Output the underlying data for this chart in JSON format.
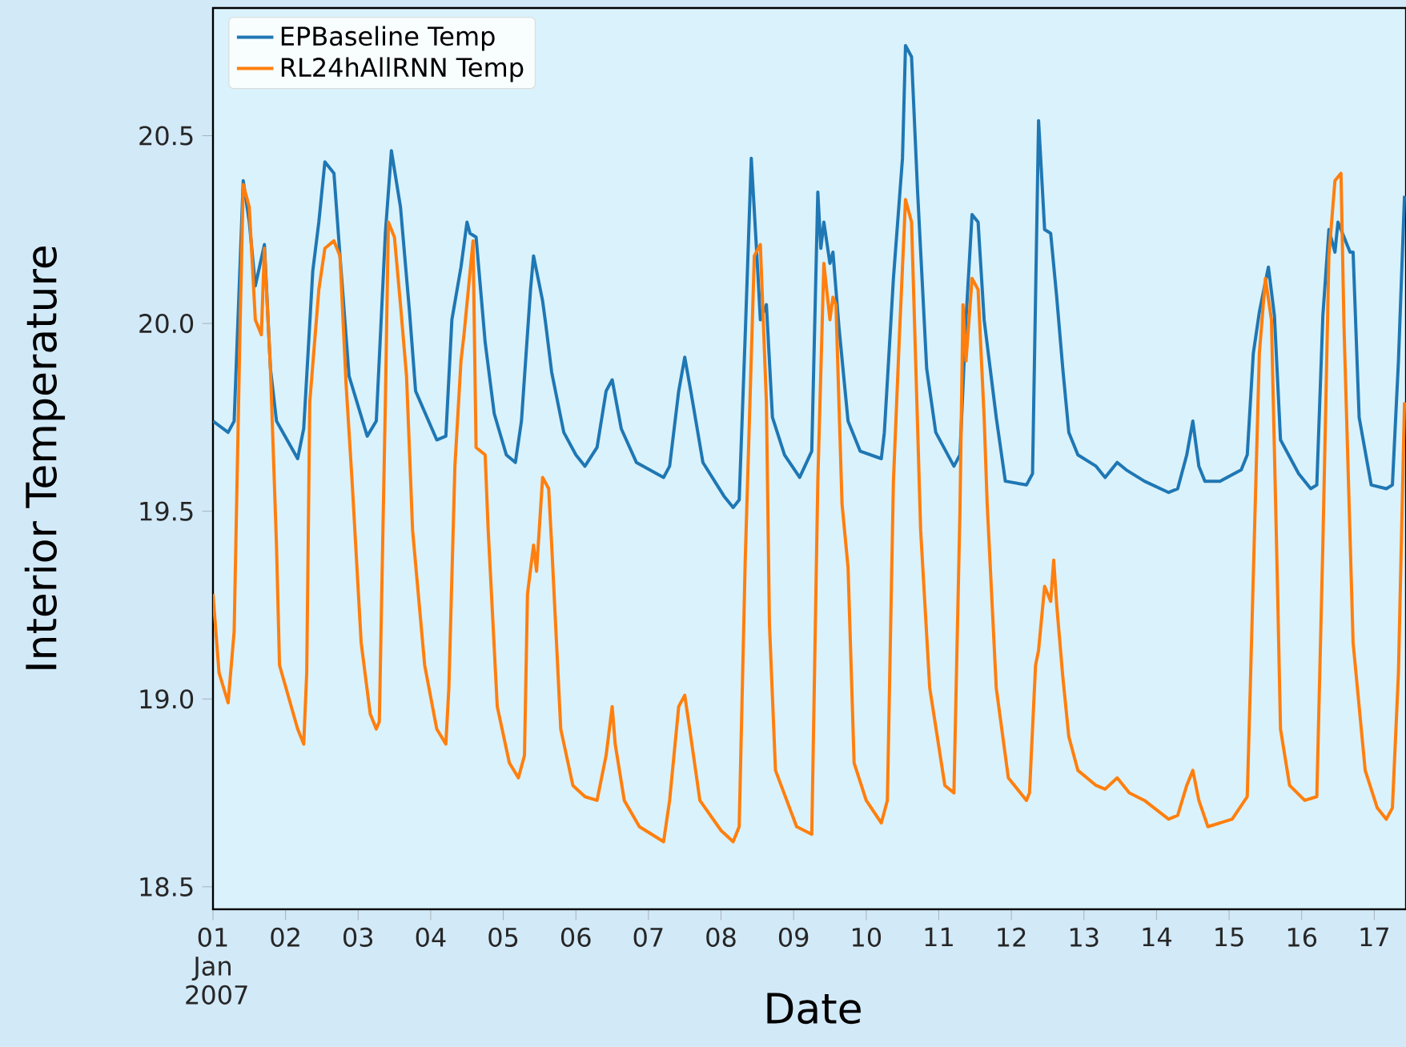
{
  "chart_data": {
    "type": "line",
    "xlabel": "Date",
    "ylabel": "Interior Temperature",
    "legend": "top left",
    "xlim": [
      "2007-01-01T00:00",
      "2007-01-17T10:30"
    ],
    "ylim": [
      18.44,
      20.84
    ],
    "yticks": [
      18.5,
      {
        "value": 19,
        "label": "19.0"
      },
      19.5,
      {
        "value": 20,
        "label": "20.0"
      },
      20.5
    ],
    "xticks": [
      {
        "value": "2007-01-01",
        "label": "01 Jan 2007"
      },
      {
        "value": "2007-01-02",
        "label": "02"
      },
      {
        "value": "2007-01-03",
        "label": "03"
      },
      {
        "value": "2007-01-04",
        "label": "04"
      },
      {
        "value": "2007-01-05",
        "label": "05"
      },
      {
        "value": "2007-01-06",
        "label": "06"
      },
      {
        "value": "2007-01-07",
        "label": "07"
      },
      {
        "value": "2007-01-08",
        "label": "08"
      },
      {
        "value": "2007-01-09",
        "label": "09"
      },
      {
        "value": "2007-01-10",
        "label": "10"
      },
      {
        "value": "2007-01-11",
        "label": "11"
      },
      {
        "value": "2007-01-12",
        "label": "12"
      },
      {
        "value": "2007-01-13",
        "label": "13"
      },
      {
        "value": "2007-01-14",
        "label": "14"
      },
      {
        "value": "2007-01-15",
        "label": "15"
      },
      {
        "value": "2007-01-16",
        "label": "16"
      },
      {
        "value": "2007-01-17",
        "label": "17"
      }
    ],
    "series": [
      {
        "name": "EPBaseline Temp",
        "color": "#1f77b4",
        "x": [
          "2007-01-01T00:00",
          "2007-01-01T05:00",
          "2007-01-01T07:00",
          "2007-01-01T10:00",
          "2007-01-01T12:00",
          "2007-01-01T14:00",
          "2007-01-01T17:00",
          "2007-01-01T19:00",
          "2007-01-01T21:00",
          "2007-01-02T04:00",
          "2007-01-02T06:00",
          "2007-01-02T09:00",
          "2007-01-02T11:00",
          "2007-01-02T13:00",
          "2007-01-02T16:00",
          "2007-01-02T18:00",
          "2007-01-02T21:00",
          "2007-01-03T03:00",
          "2007-01-03T06:00",
          "2007-01-03T09:00",
          "2007-01-03T11:00",
          "2007-01-03T14:00",
          "2007-01-03T17:00",
          "2007-01-03T19:00",
          "2007-01-04T02:00",
          "2007-01-04T05:00",
          "2007-01-04T07:00",
          "2007-01-04T10:00",
          "2007-01-04T12:00",
          "2007-01-04T13:00",
          "2007-01-04T15:00",
          "2007-01-04T18:00",
          "2007-01-04T21:00",
          "2007-01-05T01:00",
          "2007-01-05T04:00",
          "2007-01-05T06:00",
          "2007-01-05T09:00",
          "2007-01-05T10:00",
          "2007-01-05T13:00",
          "2007-01-05T14:00",
          "2007-01-05T16:00",
          "2007-01-05T20:00",
          "2007-01-06T00:00",
          "2007-01-06T03:00",
          "2007-01-06T07:00",
          "2007-01-06T10:00",
          "2007-01-06T12:00",
          "2007-01-06T15:00",
          "2007-01-06T20:00",
          "2007-01-07T05:00",
          "2007-01-07T07:00",
          "2007-01-07T10:00",
          "2007-01-07T12:00",
          "2007-01-07T14:00",
          "2007-01-07T18:00",
          "2007-01-08T01:00",
          "2007-01-08T04:00",
          "2007-01-08T06:00",
          "2007-01-08T08:00",
          "2007-01-08T10:00",
          "2007-01-08T12:00",
          "2007-01-08T13:00",
          "2007-01-08T15:00",
          "2007-01-08T17:00",
          "2007-01-08T21:00",
          "2007-01-09T02:00",
          "2007-01-09T06:00",
          "2007-01-09T08:00",
          "2007-01-09T09:00",
          "2007-01-09T10:00",
          "2007-01-09T12:00",
          "2007-01-09T13:00",
          "2007-01-09T15:00",
          "2007-01-09T18:00",
          "2007-01-09T22:00",
          "2007-01-10T05:00",
          "2007-01-10T06:00",
          "2007-01-10T09:00",
          "2007-01-10T12:00",
          "2007-01-10T13:00",
          "2007-01-10T15:00",
          "2007-01-10T17:00",
          "2007-01-10T20:00",
          "2007-01-10T23:00",
          "2007-01-11T05:00",
          "2007-01-11T07:00",
          "2007-01-11T09:00",
          "2007-01-11T11:00",
          "2007-01-11T13:00",
          "2007-01-11T15:00",
          "2007-01-11T17:00",
          "2007-01-11T19:00",
          "2007-01-11T22:00",
          "2007-01-12T05:00",
          "2007-01-12T07:00",
          "2007-01-12T09:00",
          "2007-01-12T11:00",
          "2007-01-12T13:00",
          "2007-01-12T15:00",
          "2007-01-12T17:00",
          "2007-01-12T19:00",
          "2007-01-12T22:00",
          "2007-01-13T04:00",
          "2007-01-13T07:00",
          "2007-01-13T11:00",
          "2007-01-13T14:00",
          "2007-01-13T20:00",
          "2007-01-14T04:00",
          "2007-01-14T07:00",
          "2007-01-14T10:00",
          "2007-01-14T12:00",
          "2007-01-14T14:00",
          "2007-01-14T16:00",
          "2007-01-14T21:00",
          "2007-01-15T04:00",
          "2007-01-15T06:00",
          "2007-01-15T08:00",
          "2007-01-15T10:00",
          "2007-01-15T13:00",
          "2007-01-15T15:00",
          "2007-01-15T17:00",
          "2007-01-15T23:00",
          "2007-01-16T03:00",
          "2007-01-16T05:00",
          "2007-01-16T07:00",
          "2007-01-16T09:00",
          "2007-01-16T11:00",
          "2007-01-16T12:00",
          "2007-01-16T16:00",
          "2007-01-16T17:00",
          "2007-01-16T19:00",
          "2007-01-16T23:00",
          "2007-01-17T04:00",
          "2007-01-17T06:00",
          "2007-01-17T08:00",
          "2007-01-17T10:00"
        ],
        "values": [
          19.74,
          19.71,
          19.74,
          20.38,
          20.27,
          20.1,
          20.21,
          19.88,
          19.74,
          19.64,
          19.72,
          20.14,
          20.27,
          20.43,
          20.4,
          20.18,
          19.86,
          19.7,
          19.74,
          20.24,
          20.46,
          20.31,
          20.03,
          19.82,
          19.69,
          19.7,
          20.01,
          20.15,
          20.27,
          20.24,
          20.23,
          19.95,
          19.76,
          19.65,
          19.63,
          19.74,
          20.09,
          20.18,
          20.06,
          20.0,
          19.87,
          19.71,
          19.65,
          19.62,
          19.67,
          19.82,
          19.85,
          19.72,
          19.63,
          19.59,
          19.62,
          19.82,
          19.91,
          19.82,
          19.63,
          19.54,
          19.51,
          19.53,
          19.97,
          20.44,
          20.16,
          20.01,
          20.05,
          19.75,
          19.65,
          19.59,
          19.66,
          20.35,
          20.2,
          20.27,
          20.16,
          20.19,
          19.99,
          19.74,
          19.66,
          19.64,
          19.71,
          20.12,
          20.44,
          20.74,
          20.71,
          20.35,
          19.88,
          19.71,
          19.62,
          19.65,
          20.01,
          20.29,
          20.27,
          20.01,
          19.88,
          19.75,
          19.58,
          19.57,
          19.6,
          20.54,
          20.25,
          20.24,
          20.07,
          19.88,
          19.71,
          19.65,
          19.62,
          19.59,
          19.63,
          19.61,
          19.58,
          19.55,
          19.56,
          19.65,
          19.74,
          19.62,
          19.58,
          19.58,
          19.61,
          19.65,
          19.92,
          20.03,
          20.15,
          20.02,
          19.69,
          19.6,
          19.56,
          19.57,
          20.02,
          20.25,
          20.19,
          20.27,
          20.19,
          20.19,
          19.75,
          19.57,
          19.56,
          19.57,
          19.9,
          20.34
        ]
      },
      {
        "name": "RL24hAllRNN Temp",
        "color": "#ff7f0e",
        "x": [
          "2007-01-01T00:00",
          "2007-01-01T02:00",
          "2007-01-01T05:00",
          "2007-01-01T07:00",
          "2007-01-01T09:00",
          "2007-01-01T10:00",
          "2007-01-01T12:00",
          "2007-01-01T13:00",
          "2007-01-01T14:00",
          "2007-01-01T16:00",
          "2007-01-01T17:00",
          "2007-01-01T19:00",
          "2007-01-01T21:00",
          "2007-01-01T22:00",
          "2007-01-02T04:00",
          "2007-01-02T06:00",
          "2007-01-02T07:00",
          "2007-01-02T08:00",
          "2007-01-02T11:00",
          "2007-01-02T13:00",
          "2007-01-02T16:00",
          "2007-01-02T18:00",
          "2007-01-02T20:00",
          "2007-01-02T22:00",
          "2007-01-03T01:00",
          "2007-01-03T04:00",
          "2007-01-03T06:00",
          "2007-01-03T07:00",
          "2007-01-03T09:00",
          "2007-01-03T10:00",
          "2007-01-03T12:00",
          "2007-01-03T14:00",
          "2007-01-03T16:00",
          "2007-01-03T18:00",
          "2007-01-03T22:00",
          "2007-01-04T02:00",
          "2007-01-04T05:00",
          "2007-01-04T06:00",
          "2007-01-04T08:00",
          "2007-01-04T10:00",
          "2007-01-04T11:00",
          "2007-01-04T14:00",
          "2007-01-04T15:00",
          "2007-01-04T18:00",
          "2007-01-04T19:00",
          "2007-01-04T22:00",
          "2007-01-05T02:00",
          "2007-01-05T05:00",
          "2007-01-05T07:00",
          "2007-01-05T08:00",
          "2007-01-05T10:00",
          "2007-01-05T11:00",
          "2007-01-05T13:00",
          "2007-01-05T15:00",
          "2007-01-05T16:00",
          "2007-01-05T19:00",
          "2007-01-05T23:00",
          "2007-01-06T03:00",
          "2007-01-06T07:00",
          "2007-01-06T10:00",
          "2007-01-06T12:00",
          "2007-01-06T13:00",
          "2007-01-06T16:00",
          "2007-01-06T21:00",
          "2007-01-07T05:00",
          "2007-01-07T07:00",
          "2007-01-07T10:00",
          "2007-01-07T12:00",
          "2007-01-07T14:00",
          "2007-01-07T17:00",
          "2007-01-08T00:00",
          "2007-01-08T04:00",
          "2007-01-08T06:00",
          "2007-01-08T08:00",
          "2007-01-08T11:00",
          "2007-01-08T13:00",
          "2007-01-08T15:00",
          "2007-01-08T16:00",
          "2007-01-08T18:00",
          "2007-01-09T01:00",
          "2007-01-09T06:00",
          "2007-01-09T08:00",
          "2007-01-09T10:00",
          "2007-01-09T12:00",
          "2007-01-09T13:00",
          "2007-01-09T14:00",
          "2007-01-09T16:00",
          "2007-01-09T18:00",
          "2007-01-09T20:00",
          "2007-01-10T00:00",
          "2007-01-10T05:00",
          "2007-01-10T07:00",
          "2007-01-10T09:00",
          "2007-01-10T11:00",
          "2007-01-10T13:00",
          "2007-01-10T15:00",
          "2007-01-10T18:00",
          "2007-01-10T21:00",
          "2007-01-11T02:00",
          "2007-01-11T05:00",
          "2007-01-11T07:00",
          "2007-01-11T08:00",
          "2007-01-11T09:00",
          "2007-01-11T11:00",
          "2007-01-11T13:00",
          "2007-01-11T15:00",
          "2007-01-11T16:00",
          "2007-01-11T19:00",
          "2007-01-11T23:00",
          "2007-01-12T05:00",
          "2007-01-12T06:00",
          "2007-01-12T08:00",
          "2007-01-12T09:00",
          "2007-01-12T11:00",
          "2007-01-12T13:00",
          "2007-01-12T14:00",
          "2007-01-12T15:00",
          "2007-01-12T17:00",
          "2007-01-12T19:00",
          "2007-01-12T22:00",
          "2007-01-13T04:00",
          "2007-01-13T07:00",
          "2007-01-13T11:00",
          "2007-01-13T15:00",
          "2007-01-13T20:00",
          "2007-01-14T04:00",
          "2007-01-14T07:00",
          "2007-01-14T10:00",
          "2007-01-14T12:00",
          "2007-01-14T14:00",
          "2007-01-14T17:00",
          "2007-01-15T01:00",
          "2007-01-15T06:00",
          "2007-01-15T07:00",
          "2007-01-15T10:00",
          "2007-01-15T12:00",
          "2007-01-15T14:00",
          "2007-01-15T16:00",
          "2007-01-15T17:00",
          "2007-01-15T20:00",
          "2007-01-16T01:00",
          "2007-01-16T05:00",
          "2007-01-16T07:00",
          "2007-01-16T09:00",
          "2007-01-16T11:00",
          "2007-01-16T13:00",
          "2007-01-16T14:00",
          "2007-01-16T17:00",
          "2007-01-16T21:00",
          "2007-01-17T01:00",
          "2007-01-17T04:00",
          "2007-01-17T06:00",
          "2007-01-17T08:00",
          "2007-01-17T10:00"
        ],
        "values": [
          19.28,
          19.07,
          18.99,
          19.18,
          20.01,
          20.37,
          20.31,
          20.16,
          20.01,
          19.97,
          20.2,
          19.88,
          19.41,
          19.09,
          18.92,
          18.88,
          19.07,
          19.79,
          20.09,
          20.2,
          20.22,
          20.18,
          19.84,
          19.58,
          19.15,
          18.96,
          18.92,
          18.94,
          19.79,
          20.27,
          20.23,
          20.05,
          19.86,
          19.45,
          19.09,
          18.92,
          18.88,
          19.03,
          19.62,
          19.9,
          19.97,
          20.22,
          19.67,
          19.65,
          19.45,
          18.98,
          18.83,
          18.79,
          18.85,
          19.28,
          19.41,
          19.34,
          19.59,
          19.56,
          19.41,
          18.92,
          18.77,
          18.74,
          18.73,
          18.85,
          18.98,
          18.88,
          18.73,
          18.66,
          18.62,
          18.73,
          18.98,
          19.01,
          18.9,
          18.73,
          18.65,
          18.62,
          18.66,
          19.37,
          20.18,
          20.21,
          19.79,
          19.2,
          18.81,
          18.66,
          18.64,
          19.58,
          20.16,
          20.01,
          20.07,
          20.05,
          19.52,
          19.35,
          18.83,
          18.73,
          18.67,
          18.73,
          19.58,
          19.97,
          20.33,
          20.27,
          19.45,
          19.03,
          18.77,
          18.75,
          19.5,
          20.05,
          19.9,
          20.12,
          20.09,
          19.75,
          19.52,
          19.03,
          18.79,
          18.73,
          18.75,
          19.09,
          19.13,
          19.3,
          19.26,
          19.37,
          19.25,
          19.06,
          18.9,
          18.81,
          18.77,
          18.76,
          18.79,
          18.75,
          18.73,
          18.68,
          18.69,
          18.77,
          18.81,
          18.73,
          18.66,
          18.68,
          18.74,
          19.03,
          19.92,
          20.12,
          20.01,
          19.3,
          18.92,
          18.77,
          18.73,
          18.74,
          19.41,
          20.18,
          20.38,
          20.4,
          19.99,
          19.15,
          18.81,
          18.71,
          18.68,
          18.71,
          19.07,
          19.79
        ]
      }
    ]
  }
}
